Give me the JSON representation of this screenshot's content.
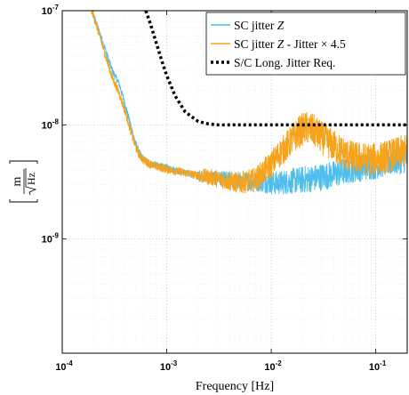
{
  "chart_data": {
    "type": "line",
    "xlabel": "Frequency [Hz]",
    "ylabel_numerator": "m",
    "ylabel_denominator": "Hz",
    "x_scale": "log",
    "y_scale": "log",
    "xlim": [
      0.0001,
      0.2
    ],
    "ylim": [
      1e-10,
      1e-07
    ],
    "x_ticks": [
      {
        "value": 0.0001,
        "mantissa": "10",
        "exp": "-4"
      },
      {
        "value": 0.001,
        "mantissa": "10",
        "exp": "-3"
      },
      {
        "value": 0.01,
        "mantissa": "10",
        "exp": "-2"
      },
      {
        "value": 0.1,
        "mantissa": "10",
        "exp": "-1"
      }
    ],
    "y_ticks": [
      {
        "value": 1e-09,
        "mantissa": "10",
        "exp": "-9"
      },
      {
        "value": 1e-08,
        "mantissa": "10",
        "exp": "-8"
      },
      {
        "value": 1e-07,
        "mantissa": "10",
        "exp": "-7"
      }
    ],
    "grid": true,
    "legend_placement": "top-right",
    "series": [
      {
        "name": "SC jitter Z",
        "color": "#4dbeee",
        "style": "solid",
        "noise": 0.05,
        "x": [
          0.00018,
          0.0002,
          0.00025,
          0.0003,
          0.00035,
          0.0004,
          0.00045,
          0.0005,
          0.00055,
          0.0006,
          0.0007,
          0.0008,
          0.001,
          0.0015,
          0.002,
          0.003,
          0.004,
          0.005,
          0.006,
          0.007,
          0.008,
          0.01,
          0.012,
          0.015,
          0.02,
          0.025,
          0.03,
          0.04,
          0.05,
          0.06,
          0.07,
          0.08,
          0.1,
          0.12,
          0.15,
          0.2
        ],
        "y": [
          1.2e-07,
          9e-08,
          5e-08,
          3e-08,
          2.3e-08,
          1.5e-08,
          1e-08,
          7e-09,
          5.6e-09,
          5e-09,
          4.6e-09,
          4.4e-09,
          4.2e-09,
          3.8e-09,
          3.6e-09,
          3.4e-09,
          3.3e-09,
          3.2e-09,
          3.2e-09,
          3.2e-09,
          3.2e-09,
          3.1e-09,
          3.1e-09,
          3.2e-09,
          3.3e-09,
          3.4e-09,
          3.5e-09,
          3.7e-09,
          3.9e-09,
          4.1e-09,
          4.2e-09,
          4.3e-09,
          4.4e-09,
          4.6e-09,
          4.8e-09,
          5e-09
        ]
      },
      {
        "name": "SC jitter Z - Jitter × 4.5",
        "color": "#f7a21b",
        "style": "solid",
        "noise": 0.06,
        "x": [
          0.00018,
          0.0002,
          0.00025,
          0.0003,
          0.00035,
          0.0004,
          0.00045,
          0.0005,
          0.00055,
          0.0006,
          0.0007,
          0.0008,
          0.001,
          0.0015,
          0.002,
          0.003,
          0.004,
          0.005,
          0.006,
          0.007,
          0.008,
          0.01,
          0.012,
          0.015,
          0.018,
          0.02,
          0.022,
          0.025,
          0.03,
          0.04,
          0.05,
          0.06,
          0.08,
          0.1,
          0.12,
          0.15,
          0.2
        ],
        "y": [
          1.2e-07,
          9e-08,
          4.5e-08,
          2.6e-08,
          1.9e-08,
          1.3e-08,
          9e-09,
          6.5e-09,
          5.4e-09,
          4.9e-09,
          4.5e-09,
          4.3e-09,
          4.1e-09,
          3.8e-09,
          3.6e-09,
          3.4e-09,
          3.2e-09,
          3.1e-09,
          3.2e-09,
          3.3e-09,
          3.7e-09,
          4.5e-09,
          5.6e-09,
          7e-09,
          8.5e-09,
          9.2e-09,
          9.4e-09,
          9e-09,
          7.8e-09,
          6.5e-09,
          5.6e-09,
          5.2e-09,
          5e-09,
          5e-09,
          5.2e-09,
          5.5e-09,
          6e-09
        ]
      },
      {
        "name": "S/C Long. Jitter Req.",
        "color": "#000000",
        "style": "dotted",
        "noise": 0,
        "x": [
          0.00063,
          0.0007,
          0.0008,
          0.0009,
          0.001,
          0.0012,
          0.0015,
          0.002,
          0.0025,
          0.003,
          0.004,
          0.005,
          0.01,
          0.05,
          0.2
        ],
        "y": [
          1e-07,
          7.6e-08,
          5.1e-08,
          3.6e-08,
          2.7e-08,
          1.8e-08,
          1.3e-08,
          1.07e-08,
          1.02e-08,
          1e-08,
          1e-08,
          1e-08,
          1e-08,
          1e-08,
          1e-08
        ]
      }
    ],
    "legend": [
      {
        "label": "SC jitter ",
        "italic": "Z",
        "suffix": ""
      },
      {
        "label": "SC jitter ",
        "italic": "Z",
        "suffix": " - Jitter × 4.5"
      },
      {
        "label": "S/C Long. Jitter Req.",
        "italic": "",
        "suffix": ""
      }
    ]
  }
}
